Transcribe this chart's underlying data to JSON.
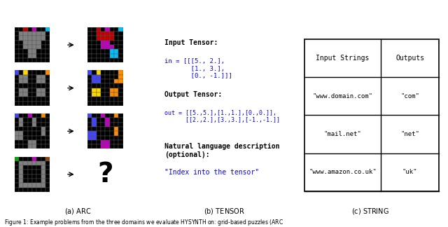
{
  "title": "Figure 1: Example problems from the three domains we evaluate HySynth on: grid-based puzzles (ARC",
  "subtitle_a": "(a) Arc",
  "subtitle_b": "(b) Tensor",
  "subtitle_c": "(c) String",
  "tensor_text_label1": "Input Tensor:",
  "tensor_text_in": "in = [[[5., 2.],\n       [1., 3.],\n       [0., -1.]]]",
  "tensor_text_label2": "Output Tensor:",
  "tensor_text_out": "out = [[5.,5.],[1.,1.],[0.,0.]],\n      [[2.,2.],[3.,3.],[-1.,-1.]]",
  "tensor_text_label3": "Natural language description\n(optional):",
  "tensor_text_nl": "\"Index into the tensor\"",
  "string_headers": [
    "Input Strings",
    "Outputs"
  ],
  "string_rows": [
    [
      "\"www.domain.com\"",
      "\"com\""
    ],
    [
      "\"mail.net\"",
      "\"net\""
    ],
    [
      "\"www.amazon.co.uk\"",
      "\"uk\""
    ]
  ],
  "bg_color": "white",
  "blue_text_color": "#0000FF",
  "black_text_color": "#000000",
  "grid_line_color": "#555555",
  "arc_bg": "#000000",
  "arc_gray": "#808080",
  "arc_colors": {
    "red": "#C00000",
    "magenta": "#C000C0",
    "cyan": "#00BFFF",
    "blue": "#4444FF",
    "yellow": "#FFD700",
    "orange": "#FF8C00",
    "green": "#00AA00",
    "brown": "#8B4513",
    "pink": "#FF69B4"
  }
}
